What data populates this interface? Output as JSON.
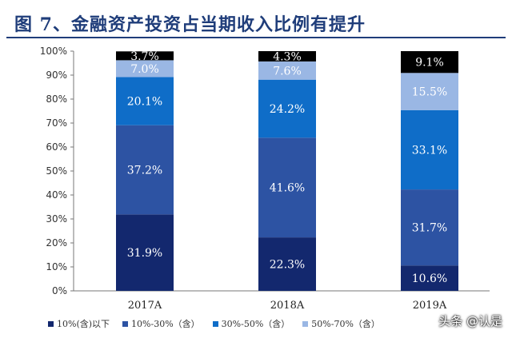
{
  "title": "图 7、金融资产投资占当期收入比例有提升",
  "watermark": "头条 @认是",
  "colors": {
    "series": [
      "#13286e",
      "#2d53a3",
      "#0f6dc8",
      "#9ab7e4"
    ],
    "title": "#1f3d7a"
  },
  "chart_data": {
    "type": "bar",
    "stacked": true,
    "categories": [
      "2017A",
      "2018A",
      "2019A"
    ],
    "series": [
      {
        "name": "10%(含)以下",
        "values": [
          31.9,
          22.3,
          10.6
        ]
      },
      {
        "name": "10%-30%（含）",
        "values": [
          37.2,
          41.6,
          31.7
        ]
      },
      {
        "name": "30%-50%（含）",
        "values": [
          20.1,
          24.2,
          33.1
        ]
      },
      {
        "name": "50%-70%（含）",
        "values": [
          7.0,
          7.6,
          15.5
        ]
      },
      {
        "name": "",
        "values": [
          3.7,
          4.3,
          9.1
        ]
      }
    ],
    "y_ticks": [
      "0%",
      "10%",
      "20%",
      "30%",
      "40%",
      "50%",
      "60%",
      "70%",
      "80%",
      "90%",
      "100%"
    ],
    "ylim": [
      0,
      100
    ],
    "grid": false,
    "legend_position": "bottom"
  }
}
